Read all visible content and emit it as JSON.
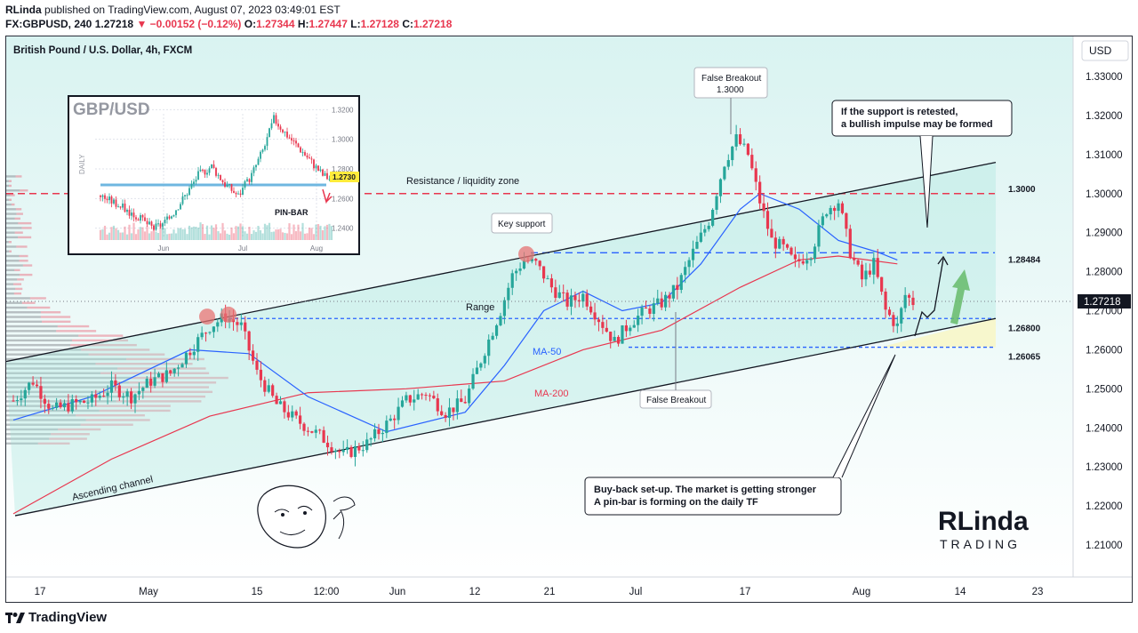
{
  "header": {
    "author": "RLinda",
    "published_text": "published on TradingView.com, August 07, 2023 03:49:01 EST",
    "symbol": "FX:GBPUSD, 240",
    "last": "1.27218",
    "arrow": "▼",
    "change": "−0.00152 (−0.12%)",
    "o_label": "O:",
    "o": "1.27344",
    "h_label": "H:",
    "h": "1.27447",
    "l_label": "L:",
    "l": "1.27128",
    "c_label": "C:",
    "c": "1.27218"
  },
  "chart_title": "British Pound / U.S. Dollar, 4h, FXCM",
  "currency_button": "USD",
  "footer_brand": "TradingView",
  "colors": {
    "up": "#26a69a",
    "down": "#e8374f",
    "ma50": "#2962ff",
    "ma200": "#e8374f",
    "channel": "#131722",
    "resistance_dashed": "#e8374f",
    "support_dashed": "#2962ff",
    "arrow_green": "#66bb6a"
  },
  "chart_data": {
    "type": "candlestick",
    "title": "British Pound / U.S. Dollar, 4h, FXCM",
    "ylim": [
      1.205,
      1.337
    ],
    "y_ticks": [
      "1.33000",
      "1.32000",
      "1.31000",
      "1.30000",
      "1.29000",
      "1.28000",
      "1.27000",
      "1.26000",
      "1.25000",
      "1.24000",
      "1.23000",
      "1.22000",
      "1.21000"
    ],
    "x_ticks": [
      "17",
      "May",
      "15",
      "12:00",
      "Jun",
      "12",
      "21",
      "Jul",
      "17",
      "Aug",
      "14",
      "23"
    ],
    "last_price_label": "1.27218",
    "price_path": [
      [
        0,
        1.247
      ],
      [
        5,
        1.252
      ],
      [
        10,
        1.2445
      ],
      [
        15,
        1.246
      ],
      [
        20,
        1.247
      ],
      [
        25,
        1.2505
      ],
      [
        30,
        1.248
      ],
      [
        35,
        1.252
      ],
      [
        40,
        1.254
      ],
      [
        45,
        1.26
      ],
      [
        50,
        1.266
      ],
      [
        54,
        1.2685
      ],
      [
        58,
        1.266
      ],
      [
        62,
        1.254
      ],
      [
        67,
        1.246
      ],
      [
        72,
        1.242
      ],
      [
        78,
        1.238
      ],
      [
        84,
        1.233
      ],
      [
        90,
        1.236
      ],
      [
        96,
        1.242
      ],
      [
        100,
        1.247
      ],
      [
        105,
        1.249
      ],
      [
        110,
        1.244
      ],
      [
        115,
        1.247
      ],
      [
        120,
        1.26
      ],
      [
        124,
        1.27
      ],
      [
        127,
        1.279
      ],
      [
        130,
        1.283
      ],
      [
        133,
        1.282
      ],
      [
        137,
        1.276
      ],
      [
        141,
        1.272
      ],
      [
        145,
        1.274
      ],
      [
        149,
        1.268
      ],
      [
        153,
        1.262
      ],
      [
        157,
        1.267
      ],
      [
        161,
        1.27
      ],
      [
        165,
        1.272
      ],
      [
        169,
        1.276
      ],
      [
        173,
        1.285
      ],
      [
        177,
        1.293
      ],
      [
        181,
        1.308
      ],
      [
        184,
        1.314
      ],
      [
        187,
        1.31
      ],
      [
        190,
        1.298
      ],
      [
        193,
        1.288
      ],
      [
        196,
        1.286
      ],
      [
        199,
        1.282
      ],
      [
        203,
        1.285
      ],
      [
        207,
        1.296
      ],
      [
        210,
        1.298
      ],
      [
        213,
        1.285
      ],
      [
        216,
        1.278
      ],
      [
        219,
        1.282
      ],
      [
        222,
        1.27
      ],
      [
        225,
        1.266
      ],
      [
        227,
        1.274
      ],
      [
        229,
        1.2722
      ]
    ],
    "ma50": [
      [
        0,
        1.242
      ],
      [
        20,
        1.248
      ],
      [
        45,
        1.26
      ],
      [
        60,
        1.259
      ],
      [
        75,
        1.248
      ],
      [
        95,
        1.239
      ],
      [
        115,
        1.244
      ],
      [
        125,
        1.256
      ],
      [
        135,
        1.27
      ],
      [
        145,
        1.275
      ],
      [
        155,
        1.27
      ],
      [
        165,
        1.272
      ],
      [
        175,
        1.282
      ],
      [
        185,
        1.296
      ],
      [
        190,
        1.3
      ],
      [
        200,
        1.296
      ],
      [
        210,
        1.288
      ],
      [
        220,
        1.285
      ],
      [
        225,
        1.283
      ]
    ],
    "ma200": [
      [
        0,
        1.218
      ],
      [
        25,
        1.232
      ],
      [
        50,
        1.243
      ],
      [
        75,
        1.249
      ],
      [
        100,
        1.25
      ],
      [
        125,
        1.252
      ],
      [
        145,
        1.26
      ],
      [
        165,
        1.265
      ],
      [
        185,
        1.276
      ],
      [
        200,
        1.283
      ],
      [
        210,
        1.284
      ],
      [
        225,
        1.282
      ]
    ],
    "levels": [
      {
        "label": "1.3000",
        "value": 1.3,
        "style": "red-dashed"
      },
      {
        "label": "1.28484",
        "value": 1.28484,
        "style": "blue-dashed"
      },
      {
        "label": "1.26800",
        "value": 1.268,
        "style": "blue-dashed"
      },
      {
        "label": "1.26065",
        "value": 1.26065,
        "style": "blue-dashed"
      }
    ],
    "annotations": {
      "resistance": "Resistance / liquidity zone",
      "key_support": "Key support",
      "range": "Range",
      "ma50": "MA-50",
      "ma200": "MA-200",
      "false_breakout_top": [
        "False Breakout",
        "1.3000"
      ],
      "false_breakout_bottom": "False Breakout",
      "retest": [
        "If the support is retested,",
        "a bullish impulse may be formed"
      ],
      "buyback": [
        "Buy-back set-up. The market is getting stronger",
        "A pin-bar is forming on the daily TF"
      ],
      "channel": "Ascending channel"
    }
  },
  "inset": {
    "title": "GBP/USD",
    "side_label": "DAILY",
    "pin_bar": "PIN-BAR",
    "price_tag": "1.2730",
    "y_ticks": [
      "1.3200",
      "1.3000",
      "1.2800",
      "1.2600",
      "1.2400"
    ],
    "x_ticks": [
      "Jun",
      "Jul",
      "Aug"
    ]
  },
  "logo": {
    "top": "RLinda",
    "bottom": "TRADING"
  }
}
